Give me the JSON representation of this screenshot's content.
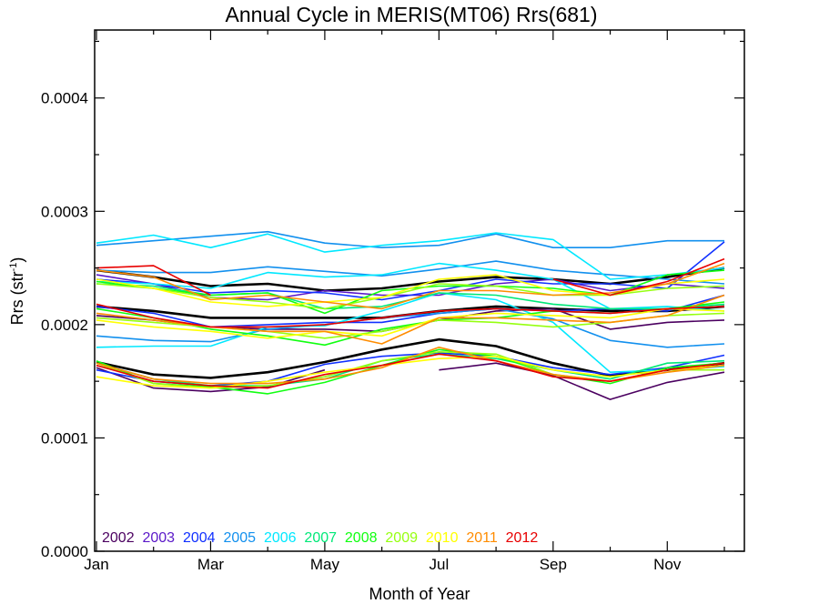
{
  "chart_data": {
    "type": "line",
    "title": "Annual Cycle in MERIS(MT06) Rrs(681)",
    "xlabel": "Month of Year",
    "ylabel": {
      "base": "Rrs (str",
      "sup": "-1",
      "close": ")"
    },
    "xlim": [
      1,
      12
    ],
    "ylim": [
      0,
      0.00046
    ],
    "x_ticks": [
      {
        "value": 1,
        "label": "Jan"
      },
      {
        "value": 3,
        "label": "Mar"
      },
      {
        "value": 5,
        "label": "May"
      },
      {
        "value": 7,
        "label": "Jul"
      },
      {
        "value": 9,
        "label": "Sep"
      },
      {
        "value": 11,
        "label": "Nov"
      }
    ],
    "y_ticks": [
      {
        "value": 0.0,
        "label": "0.0000"
      },
      {
        "value": 0.0001,
        "label": "0.0001"
      },
      {
        "value": 0.0002,
        "label": "0.0002"
      },
      {
        "value": 0.0003,
        "label": "0.0003"
      },
      {
        "value": 0.0004,
        "label": "0.0004"
      }
    ],
    "grid": false,
    "legend_position": "bottom-left",
    "legend": [
      {
        "label": "2002",
        "color": "#4b0060"
      },
      {
        "label": "2003",
        "color": "#5a18c8"
      },
      {
        "label": "2004",
        "color": "#1030ff"
      },
      {
        "label": "2005",
        "color": "#1290ee"
      },
      {
        "label": "2006",
        "color": "#00e8ff"
      },
      {
        "label": "2007",
        "color": "#00e878"
      },
      {
        "label": "2008",
        "color": "#10ff10"
      },
      {
        "label": "2009",
        "color": "#96ff10"
      },
      {
        "label": "2010",
        "color": "#ffff00"
      },
      {
        "label": "2011",
        "color": "#ff8c00"
      },
      {
        "label": "2012",
        "color": "#e80000"
      }
    ],
    "x": [
      1,
      2,
      3,
      4,
      5,
      6,
      7,
      8,
      9,
      10,
      11,
      12
    ],
    "series": [
      {
        "color": "#000000",
        "width": 2.6,
        "values": [
          0.000248,
          0.000242,
          0.000234,
          0.000236,
          0.00023,
          0.000232,
          0.000238,
          0.000242,
          0.00024,
          0.000236,
          0.000242,
          0.00025
        ]
      },
      {
        "color": "#000000",
        "width": 2.6,
        "values": [
          0.000216,
          0.000212,
          0.000206,
          0.000206,
          0.000206,
          0.000206,
          0.000212,
          0.000216,
          0.000214,
          0.000212,
          0.000212,
          0.000216
        ]
      },
      {
        "color": "#000000",
        "width": 2.6,
        "values": [
          0.000167,
          0.000156,
          0.000153,
          0.000158,
          0.000167,
          0.000178,
          0.000187,
          0.000181,
          0.000166,
          0.000155,
          0.00016,
          0.000166
        ]
      },
      {
        "color": "#4b0060",
        "values": [
          0.000162,
          0.000144,
          0.000141,
          0.000145,
          0.00016,
          null,
          0.00016,
          0.000166,
          0.000155,
          0.000134,
          0.000149,
          0.000158
        ]
      },
      {
        "color": "#4b0060",
        "values": [
          0.000208,
          0.000204,
          0.000198,
          0.000196,
          0.000196,
          0.000194,
          0.000204,
          0.000212,
          0.000214,
          0.000196,
          0.000202,
          0.000204
        ]
      },
      {
        "color": "#5a18c8",
        "values": [
          0.000244,
          0.000236,
          0.000224,
          0.000222,
          0.00023,
          0.000226,
          0.000226,
          0.000236,
          0.00024,
          0.00023,
          0.000236,
          0.000232
        ]
      },
      {
        "color": "#1030ff",
        "values": [
          0.00016,
          0.00015,
          0.000146,
          0.00015,
          0.000165,
          0.000172,
          0.000175,
          0.000172,
          0.000162,
          0.000156,
          0.000162,
          0.000173
        ]
      },
      {
        "color": "#1030ff",
        "values": [
          0.000216,
          0.00021,
          0.000198,
          0.0002,
          0.000202,
          0.000202,
          0.00021,
          0.000214,
          0.000212,
          0.000214,
          0.000212,
          0.000226
        ]
      },
      {
        "color": "#1030ff",
        "values": [
          0.00024,
          0.000236,
          0.000228,
          0.00023,
          0.000228,
          0.000222,
          0.00023,
          0.00024,
          0.000236,
          0.000236,
          0.000232,
          0.000273
        ]
      },
      {
        "color": "#1290ee",
        "values": [
          0.00027,
          0.000274,
          0.000278,
          0.000282,
          0.000272,
          0.000268,
          0.00027,
          0.00028,
          0.000268,
          0.000268,
          0.000274,
          0.000274
        ]
      },
      {
        "color": "#1290ee",
        "values": [
          0.000248,
          0.000246,
          0.000246,
          0.000251,
          0.000247,
          0.000243,
          0.000249,
          0.000256,
          0.000248,
          0.000244,
          0.00024,
          0.000236
        ]
      },
      {
        "color": "#1290ee",
        "values": [
          0.00019,
          0.000186,
          0.000185,
          0.000196,
          0.0002,
          0.000206,
          0.00021,
          0.000214,
          0.000205,
          0.000186,
          0.00018,
          0.000183
        ]
      },
      {
        "color": "#00e8ff",
        "values": [
          0.000272,
          0.000279,
          0.000268,
          0.00028,
          0.000264,
          0.00027,
          0.000274,
          0.000281,
          0.000275,
          0.00024,
          0.000244,
          0.00025
        ]
      },
      {
        "color": "#00e8ff",
        "values": [
          0.00018,
          0.000181,
          0.000181,
          0.000198,
          0.000199,
          0.000212,
          0.000228,
          0.000222,
          0.000202,
          0.000158,
          0.00016,
          0.000163
        ]
      },
      {
        "color": "#00e8ff",
        "values": [
          0.000238,
          0.000236,
          0.000232,
          0.000246,
          0.000242,
          0.000244,
          0.000254,
          0.000248,
          0.00024,
          0.000214,
          0.000216,
          0.000212
        ]
      },
      {
        "color": "#00e878",
        "values": [
          0.000236,
          0.000234,
          0.000226,
          0.000228,
          0.000214,
          0.000216,
          0.000228,
          0.000226,
          0.000218,
          0.000214,
          0.000214,
          0.000218
        ]
      },
      {
        "color": "#00e878",
        "values": [
          0.000166,
          0.000152,
          0.000146,
          0.000146,
          0.000152,
          0.000168,
          0.000174,
          0.00017,
          0.00016,
          0.000152,
          0.000166,
          0.000168
        ]
      },
      {
        "color": "#10ff10",
        "values": [
          0.000168,
          0.000148,
          0.000145,
          0.000139,
          0.000149,
          0.000164,
          0.000178,
          0.000172,
          0.000156,
          0.000148,
          0.000162,
          0.000166
        ]
      },
      {
        "color": "#10ff10",
        "values": [
          0.000214,
          0.000206,
          0.000196,
          0.00019,
          0.000182,
          0.000196,
          0.000204,
          0.000206,
          0.000212,
          0.00021,
          0.000214,
          0.00022
        ]
      },
      {
        "color": "#10ff10",
        "values": [
          0.000238,
          0.000232,
          0.000226,
          0.000228,
          0.00021,
          0.00023,
          0.000234,
          0.000234,
          0.000232,
          0.000226,
          0.000244,
          0.000248
        ]
      },
      {
        "color": "#96ff10",
        "values": [
          0.000206,
          0.000202,
          0.000198,
          0.000194,
          0.000188,
          0.000194,
          0.000204,
          0.000202,
          0.000198,
          0.000202,
          0.000208,
          0.00021
        ]
      },
      {
        "color": "#96ff10",
        "values": [
          0.000166,
          0.000148,
          0.000144,
          0.000146,
          0.000154,
          0.000168,
          0.000176,
          0.000174,
          0.000156,
          0.00015,
          0.00016,
          0.00016
        ]
      },
      {
        "color": "#96ff10",
        "values": [
          0.000236,
          0.000232,
          0.000224,
          0.00022,
          0.000214,
          0.000224,
          0.000236,
          0.000234,
          0.000226,
          0.000226,
          0.000232,
          0.000234
        ]
      },
      {
        "color": "#ffff00",
        "values": [
          0.000154,
          0.000146,
          0.000144,
          0.00015,
          0.000158,
          0.000164,
          0.00017,
          0.000172,
          0.00016,
          0.000154,
          0.00016,
          0.000164
        ]
      },
      {
        "color": "#ffff00",
        "values": [
          0.000204,
          0.000198,
          0.000194,
          0.000188,
          0.000194,
          0.00019,
          0.000206,
          0.00021,
          0.000208,
          0.000206,
          0.000214,
          0.000212
        ]
      },
      {
        "color": "#ffff00",
        "values": [
          0.00024,
          0.000232,
          0.00022,
          0.000216,
          0.00022,
          0.000224,
          0.00024,
          0.000244,
          0.00023,
          0.000226,
          0.000236,
          0.00024
        ]
      },
      {
        "color": "#ff8c00",
        "values": [
          0.000166,
          0.000152,
          0.000148,
          0.000148,
          0.000152,
          0.000162,
          0.00018,
          0.000168,
          0.000156,
          0.00015,
          0.000158,
          0.000164
        ]
      },
      {
        "color": "#ff8c00",
        "values": [
          0.00021,
          0.000204,
          0.000198,
          0.000194,
          0.000194,
          0.000183,
          0.000206,
          0.000206,
          0.000204,
          0.000202,
          0.000208,
          0.000226
        ]
      },
      {
        "color": "#ff8c00",
        "values": [
          0.000248,
          0.000242,
          0.000222,
          0.000226,
          0.00022,
          0.000214,
          0.00023,
          0.00023,
          0.000226,
          0.000228,
          0.000236,
          0.000254
        ]
      },
      {
        "color": "#e80000",
        "values": [
          0.000218,
          0.000206,
          0.000198,
          0.000198,
          0.0002,
          0.000206,
          0.000212,
          0.000214,
          0.000212,
          0.00021,
          0.000214,
          0.000216
        ]
      },
      {
        "color": "#e80000",
        "values": [
          0.00025,
          0.000252,
          0.000226,
          null,
          null,
          null,
          null,
          null,
          0.00024,
          0.000226,
          0.000238,
          0.000258
        ]
      },
      {
        "color": "#e80000",
        "values": [
          0.000164,
          0.00015,
          0.000146,
          0.000144,
          0.000156,
          0.000164,
          0.000174,
          0.000168,
          0.000154,
          0.00015,
          0.00016,
          0.000166
        ]
      }
    ]
  }
}
